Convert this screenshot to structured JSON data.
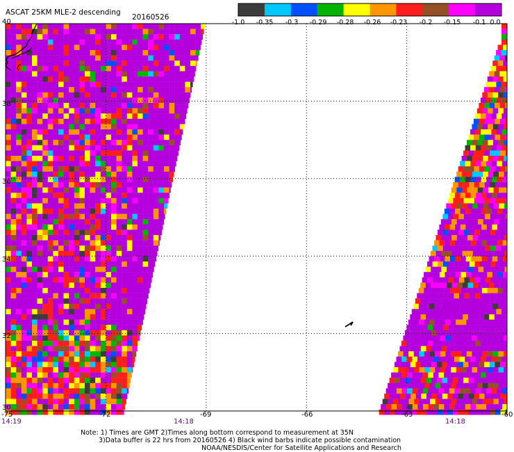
{
  "header": {
    "title": "ASCAT 25KM MLE-2 descending",
    "date": "20160526"
  },
  "colorbar": {
    "labels": [
      "-1.0",
      "-0.35",
      "-0.3",
      "-0.29",
      "-0.28",
      "-0.26",
      "-0.23",
      "-0.2",
      "-0.15",
      "-0.1",
      "0.0"
    ],
    "colors": [
      "#3c3c3c",
      "#00c8ff",
      "#0050ff",
      "#00b400",
      "#ffff00",
      "#ff9600",
      "#ff1e1e",
      "#965028",
      "#ff00ff",
      "#b400dc"
    ]
  },
  "map": {
    "lat_labels": [
      "40",
      "38",
      "36",
      "34",
      "32",
      "30"
    ],
    "lon_labels": [
      "-75",
      "-72",
      "-69",
      "-66",
      "-63",
      "-60"
    ],
    "lat_range": [
      30,
      40
    ],
    "lon_range": [
      -75,
      -60
    ],
    "grid_lats": [
      32,
      34,
      36,
      38
    ],
    "grid_lons": [
      -72,
      -69,
      -66,
      -63
    ],
    "swath_background": "#b400dc"
  },
  "times": {
    "left": "14:19",
    "middle": "14:18",
    "right": "14:18"
  },
  "notes": {
    "line1": "Note: 1) Times are GMT 2)Times along bottom correspond to measurement at 35N",
    "line2": "3)Data buffer is 22 hrs from 20160526 4) Black wind barbs indicate possible contamination",
    "line3": "NOAA/NESDIS/Center for Satellite Applications and Research"
  }
}
